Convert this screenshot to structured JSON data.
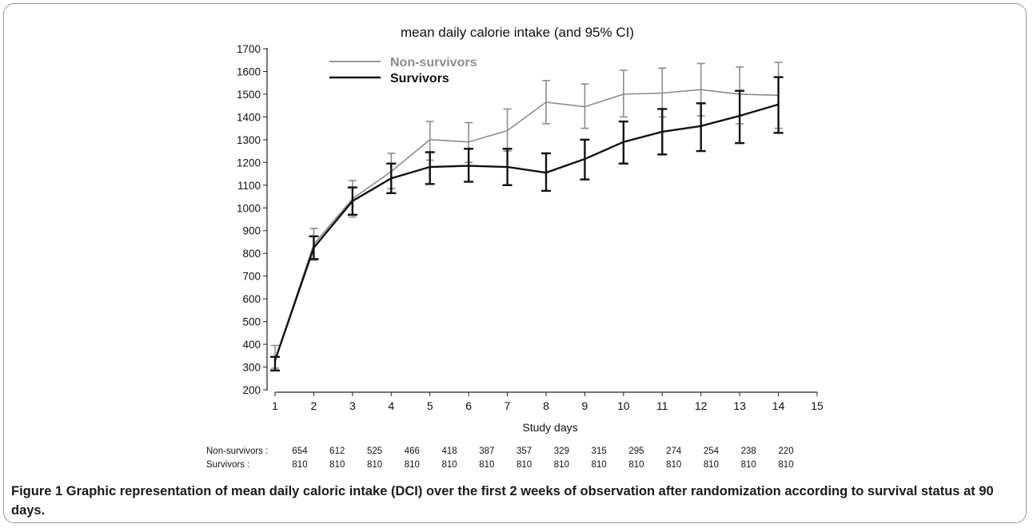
{
  "chart_data": {
    "type": "line",
    "title": "mean daily calorie intake (and 95% CI)",
    "xlabel": "Study days",
    "ylabel": "",
    "xlim": [
      1,
      15
    ],
    "ylim": [
      200,
      1700
    ],
    "x_ticks": [
      1,
      2,
      3,
      4,
      5,
      6,
      7,
      8,
      9,
      10,
      11,
      12,
      13,
      14,
      15
    ],
    "y_ticks": [
      200,
      300,
      400,
      500,
      600,
      700,
      800,
      900,
      1000,
      1100,
      1200,
      1300,
      1400,
      1500,
      1600,
      1700
    ],
    "grid": false,
    "legend_position": "top-left",
    "series": [
      {
        "name": "Non-survivors",
        "color": "#8c8c8c",
        "x": [
          1,
          2,
          3,
          4,
          5,
          6,
          7,
          8,
          9,
          10,
          11,
          12,
          13,
          14
        ],
        "values": [
          330,
          840,
          1040,
          1160,
          1300,
          1290,
          1340,
          1465,
          1445,
          1500,
          1505,
          1520,
          1500,
          1495
        ],
        "ci_low": [
          295,
          770,
          960,
          1085,
          1210,
          1200,
          1250,
          1370,
          1350,
          1400,
          1400,
          1405,
          1370,
          1350
        ],
        "ci_high": [
          395,
          910,
          1120,
          1240,
          1380,
          1375,
          1435,
          1560,
          1545,
          1605,
          1615,
          1635,
          1620,
          1640
        ]
      },
      {
        "name": "Survivors",
        "color": "#111111",
        "x": [
          1,
          2,
          3,
          4,
          5,
          6,
          7,
          8,
          9,
          10,
          11,
          12,
          13,
          14
        ],
        "values": [
          330,
          825,
          1030,
          1130,
          1180,
          1185,
          1180,
          1155,
          1215,
          1290,
          1335,
          1360,
          1405,
          1455
        ],
        "ci_low": [
          285,
          775,
          970,
          1065,
          1105,
          1115,
          1100,
          1075,
          1125,
          1195,
          1235,
          1250,
          1285,
          1330
        ],
        "ci_high": [
          345,
          875,
          1090,
          1195,
          1245,
          1260,
          1260,
          1240,
          1300,
          1380,
          1435,
          1460,
          1515,
          1575
        ]
      }
    ],
    "risk_table": {
      "rows": [
        {
          "label": "Non-survivors :",
          "values": [
            "654",
            "612",
            "525",
            "466",
            "418",
            "387",
            "357",
            "329",
            "315",
            "295",
            "274",
            "254",
            "238",
            "220"
          ]
        },
        {
          "label": "Survivors :",
          "values": [
            "810",
            "810",
            "810",
            "810",
            "810",
            "810",
            "810",
            "810",
            "810",
            "810",
            "810",
            "810",
            "810",
            "810"
          ]
        }
      ]
    }
  },
  "caption": {
    "label": "Figure 1",
    "text": "Graphic representation of mean daily caloric intake (DCI) over the first 2 weeks of observation after randomization according to survival status at 90 days."
  }
}
